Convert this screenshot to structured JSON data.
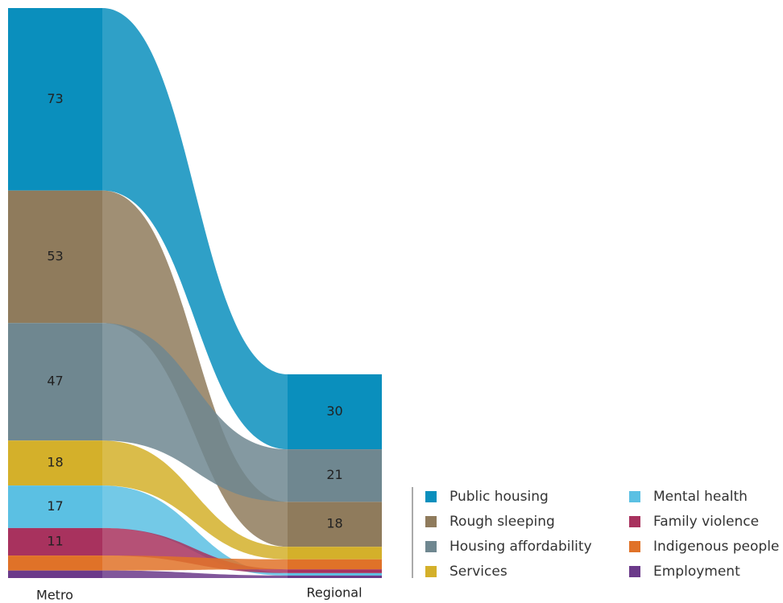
{
  "chart_data": {
    "type": "ribbon",
    "categories": [
      "Metro",
      "Regional"
    ],
    "series": [
      {
        "name": "Public housing",
        "color": "#0a8fbd",
        "values": [
          73,
          30
        ]
      },
      {
        "name": "Rough sleeping",
        "color": "#8f7b5c",
        "values": [
          53,
          18
        ]
      },
      {
        "name": "Housing affordability",
        "color": "#6f8790",
        "values": [
          47,
          21
        ]
      },
      {
        "name": "Services",
        "color": "#d4b02a",
        "values": [
          18,
          5
        ]
      },
      {
        "name": "Mental health",
        "color": "#5bc0e3",
        "values": [
          17,
          1
        ]
      },
      {
        "name": "Family violence",
        "color": "#a8325e",
        "values": [
          11,
          1.5
        ]
      },
      {
        "name": "Indigenous people",
        "color": "#e07228",
        "values": [
          6,
          4
        ]
      },
      {
        "name": "Employment",
        "color": "#6b3a8a",
        "values": [
          3,
          1
        ]
      }
    ]
  }
}
